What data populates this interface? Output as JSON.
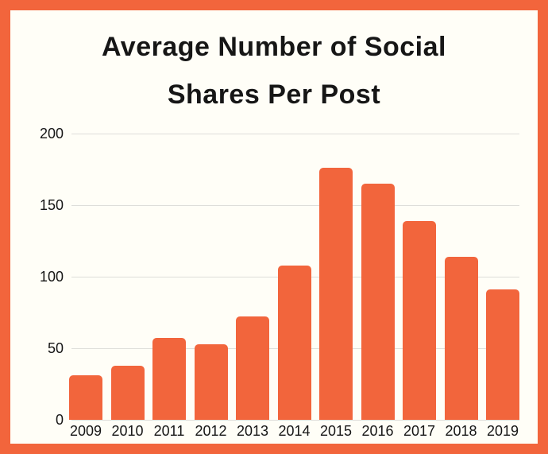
{
  "frame": {
    "border_color": "#F2653C",
    "background_color": "#FFFEF7"
  },
  "chart_data": {
    "type": "bar",
    "title": "Average Number of Social Shares Per Post",
    "title_lines": [
      "Average Number of Social",
      "Shares Per Post"
    ],
    "categories": [
      "2009",
      "2010",
      "2011",
      "2012",
      "2013",
      "2014",
      "2015",
      "2016",
      "2017",
      "2018",
      "2019"
    ],
    "values": [
      31,
      38,
      57,
      53,
      72,
      108,
      176,
      165,
      139,
      114,
      91
    ],
    "xlabel": "",
    "ylabel": "",
    "ylim": [
      0,
      200
    ],
    "y_ticks": [
      0,
      50,
      100,
      150,
      200
    ],
    "grid": true,
    "legend": false,
    "bar_color": "#F2653C",
    "grid_color": "#DEDEDA",
    "text_color": "#161616"
  }
}
